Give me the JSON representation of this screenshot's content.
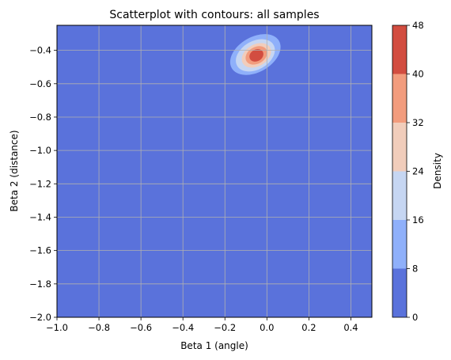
{
  "chart_data": {
    "type": "contour",
    "title": "Scatterplot with contours: all samples",
    "xlabel": "Beta 1 (angle)",
    "ylabel": "Beta 2 (distance)",
    "xlim": [
      -1.0,
      0.5
    ],
    "ylim": [
      -2.0,
      -0.25
    ],
    "x_ticks": [
      -1.0,
      -0.8,
      -0.6,
      -0.4,
      -0.2,
      0.0,
      0.2,
      0.4
    ],
    "x_tick_labels": [
      "−1.0",
      "−0.8",
      "−0.6",
      "−0.4",
      "−0.2",
      "0.0",
      "0.2",
      "0.4"
    ],
    "y_ticks": [
      -2.0,
      -1.8,
      -1.6,
      -1.4,
      -1.2,
      -1.0,
      -0.8,
      -0.6,
      -0.4
    ],
    "y_tick_labels": [
      "−2.0",
      "−1.8",
      "−1.6",
      "−1.4",
      "−1.2",
      "−1.0",
      "−0.8",
      "−0.6",
      "−0.4"
    ],
    "grid": true,
    "colorbar": {
      "label": "Density",
      "levels": [
        0,
        8,
        16,
        24,
        32,
        40,
        48
      ],
      "level_labels": [
        "0",
        "8",
        "16",
        "24",
        "32",
        "40",
        "48"
      ],
      "colors": [
        "#5a72db",
        "#8fb0fa",
        "#c6d6f2",
        "#f1cdbb",
        "#f29c7d",
        "#d24d40"
      ]
    },
    "peak": {
      "x": -0.05,
      "y": -0.43
    },
    "contour_bands": [
      {
        "level_min": 8,
        "level_max": 16,
        "center": [
          -0.055,
          -0.425
        ],
        "radius": [
          0.13,
          0.105
        ],
        "angle_deg": -30,
        "color": "#8fb0fa"
      },
      {
        "level_min": 16,
        "level_max": 24,
        "center": [
          -0.055,
          -0.43
        ],
        "radius": [
          0.1,
          0.085
        ],
        "angle_deg": -30,
        "color": "#c6d6f2"
      },
      {
        "level_min": 24,
        "level_max": 32,
        "center": [
          -0.05,
          -0.43
        ],
        "radius": [
          0.075,
          0.065
        ],
        "angle_deg": -30,
        "color": "#f1cdbb"
      },
      {
        "level_min": 32,
        "level_max": 40,
        "center": [
          -0.05,
          -0.43
        ],
        "radius": [
          0.055,
          0.05
        ],
        "angle_deg": -30,
        "color": "#f29c7d"
      },
      {
        "level_min": 40,
        "level_max": 48,
        "center": [
          -0.05,
          -0.43
        ],
        "radius": [
          0.035,
          0.035
        ],
        "angle_deg": -30,
        "color": "#d24d40"
      }
    ]
  }
}
